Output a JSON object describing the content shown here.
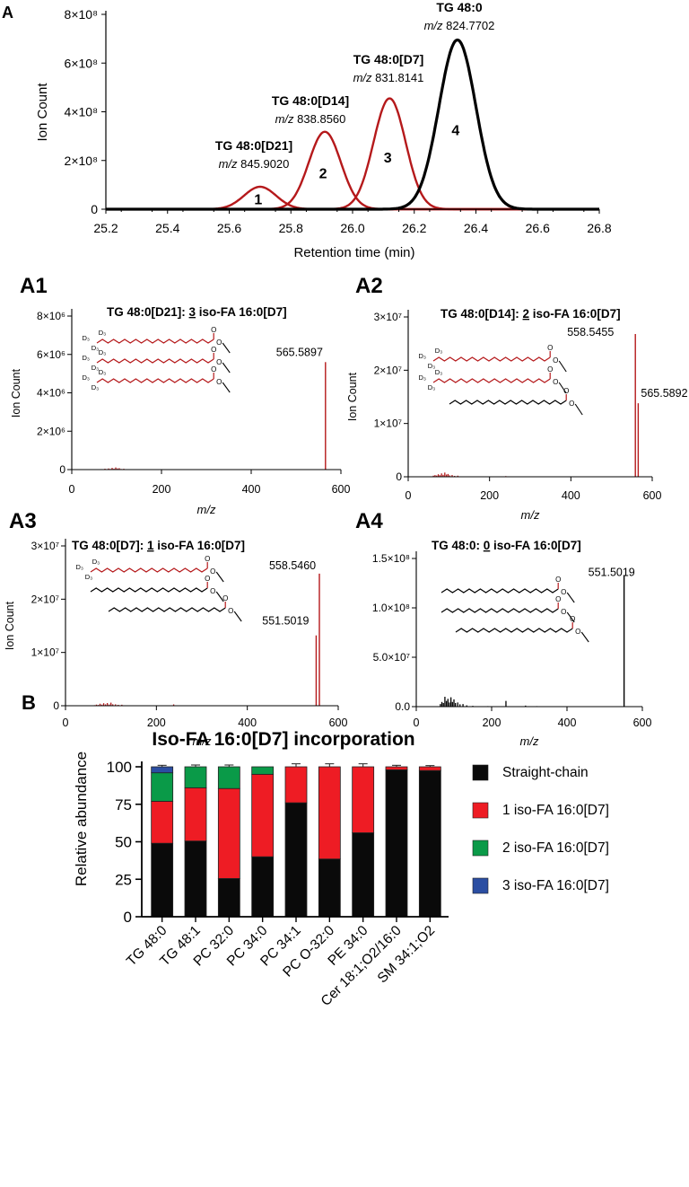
{
  "colors": {
    "red": "#b5191b",
    "black": "#000000",
    "bar_red": "#ee1c24",
    "bar_green": "#0a9a48",
    "bar_blue": "#2b4ea2",
    "bar_black": "#0a0a0a"
  },
  "panel_labels": {
    "A": "A",
    "A1": "A1",
    "A2": "A2",
    "A3": "A3",
    "A4": "A4",
    "B": "B"
  },
  "chart_data": [
    {
      "id": "A",
      "type": "line",
      "title": "",
      "xlabel": "Retention time (min)",
      "ylabel": "Ion Count",
      "xlim": [
        25.2,
        26.8
      ],
      "ylim": [
        0,
        800000000
      ],
      "xticks": [
        "25.2",
        "25.4",
        "25.6",
        "25.8",
        "26.0",
        "26.2",
        "26.4",
        "26.6",
        "26.8"
      ],
      "yticks": [
        "0",
        "2×10⁸",
        "4×10⁸",
        "6×10⁸",
        "8×10⁸"
      ],
      "series": [
        {
          "name": "1",
          "compound": "TG 48:0[D21]",
          "mz_label": "m/z",
          "mz_value": "845.9020",
          "color": "red",
          "center": 25.7,
          "peak": 92000000,
          "sigma": 0.052
        },
        {
          "name": "2",
          "compound": "TG 48:0[D14]",
          "mz_label": "m/z",
          "mz_value": "838.8560",
          "color": "red",
          "center": 25.91,
          "peak": 318000000,
          "sigma": 0.052
        },
        {
          "name": "3",
          "compound": "TG 48:0[D7]",
          "mz_label": "m/z",
          "mz_value": "831.8141",
          "color": "red",
          "center": 26.12,
          "peak": 455000000,
          "sigma": 0.052
        },
        {
          "name": "4",
          "compound": "TG 48:0",
          "mz_label": "m/z",
          "mz_value": "824.7702",
          "color": "black",
          "center": 26.34,
          "peak": 695000000,
          "sigma": 0.06
        }
      ]
    },
    {
      "id": "A1",
      "type": "bar",
      "title_prefix": "TG 48:0[D21]: ",
      "title_num": "3",
      "title_suffix": " iso-FA 16:0[D7]",
      "xlabel": "m/z",
      "ylabel": "Ion Count",
      "xlim": [
        0,
        600
      ],
      "ylim": [
        0,
        8000000
      ],
      "xticks": [
        "0",
        "200",
        "400",
        "600"
      ],
      "yticks": [
        "0",
        "2×10⁶",
        "4×10⁶",
        "6×10⁶",
        "8×10⁶"
      ],
      "color": "red",
      "peaks": [
        {
          "mz": 565.5897,
          "value": 5600000,
          "label": "565.5897"
        }
      ],
      "noise": [
        [
          62,
          0.5
        ],
        [
          66,
          0.9
        ],
        [
          70,
          0.6
        ],
        [
          74,
          1.6
        ],
        [
          78,
          0.9
        ],
        [
          82,
          2.1
        ],
        [
          86,
          1.2
        ],
        [
          90,
          3.2
        ],
        [
          94,
          1.6
        ],
        [
          98,
          4.0
        ],
        [
          102,
          2.2
        ],
        [
          106,
          2.6
        ],
        [
          110,
          1.1
        ],
        [
          116,
          1.5
        ],
        [
          124,
          0.7
        ],
        [
          134,
          0.5
        ],
        [
          150,
          0.3
        ],
        [
          186,
          0.3
        ],
        [
          242,
          0.4
        ],
        [
          300,
          0.2
        ]
      ],
      "structure": {
        "labels": [
          "D₃",
          "D₃",
          "D₃",
          "D₃",
          "D₃",
          "D₃",
          "D₃",
          "D₃",
          "D₃"
        ],
        "o": [
          "O",
          "O",
          "O",
          "O",
          "O",
          "O"
        ]
      }
    },
    {
      "id": "A2",
      "type": "bar",
      "title_prefix": "TG 48:0[D14]: ",
      "title_num": "2",
      "title_suffix": " iso-FA 16:0[D7]",
      "xlabel": "m/z",
      "ylabel": "Ion Count",
      "xlim": [
        0,
        600
      ],
      "ylim": [
        0,
        30000000
      ],
      "xticks": [
        "0",
        "200",
        "400",
        "600"
      ],
      "yticks": [
        "0",
        "1×10⁷",
        "2×10⁷",
        "3×10⁷"
      ],
      "color": "red",
      "peaks": [
        {
          "mz": 558.5455,
          "value": 26800000,
          "label": "558.5455"
        },
        {
          "mz": 565.5892,
          "value": 13800000,
          "label": "565.5892"
        }
      ],
      "noise": [
        [
          62,
          2.0
        ],
        [
          66,
          3.0
        ],
        [
          70,
          2.2
        ],
        [
          74,
          4.5
        ],
        [
          78,
          2.8
        ],
        [
          82,
          6.0
        ],
        [
          86,
          3.5
        ],
        [
          90,
          7.5
        ],
        [
          94,
          4.0
        ],
        [
          98,
          5.0
        ],
        [
          102,
          2.5
        ],
        [
          108,
          3.2
        ],
        [
          114,
          1.6
        ],
        [
          122,
          2.0
        ],
        [
          132,
          0.8
        ],
        [
          146,
          0.6
        ],
        [
          178,
          0.5
        ],
        [
          240,
          1.2
        ],
        [
          300,
          0.4
        ]
      ],
      "structure": {
        "labels": [
          "D₃",
          "D₃",
          "D₃",
          "D₃",
          "D₃",
          "D₃"
        ],
        "o": [
          "O",
          "O",
          "O",
          "O",
          "O",
          "O"
        ]
      }
    },
    {
      "id": "A3",
      "type": "bar",
      "title_prefix": "TG 48:0[D7]: ",
      "title_num": "1",
      "title_suffix": " iso-FA 16:0[D7]",
      "xlabel": "m/z",
      "ylabel": "Ion Count",
      "xlim": [
        0,
        600
      ],
      "ylim": [
        0,
        30000000
      ],
      "xticks": [
        "0",
        "200",
        "400",
        "600"
      ],
      "yticks": [
        "0",
        "1×10⁷",
        "2×10⁷",
        "3×10⁷"
      ],
      "color": "red",
      "peaks": [
        {
          "mz": 558.546,
          "value": 24800000,
          "label": "558.5460",
          "color": "red"
        },
        {
          "mz": 551.5019,
          "value": 13200000,
          "label": "551.5019",
          "color": "red"
        }
      ],
      "noise": [
        [
          64,
          1.0
        ],
        [
          68,
          2.0
        ],
        [
          72,
          1.4
        ],
        [
          76,
          3.6
        ],
        [
          80,
          2.0
        ],
        [
          84,
          4.5
        ],
        [
          88,
          2.5
        ],
        [
          92,
          4.8
        ],
        [
          96,
          2.2
        ],
        [
          100,
          5.5
        ],
        [
          104,
          2.6
        ],
        [
          110,
          2.5
        ],
        [
          116,
          1.6
        ],
        [
          124,
          1.8
        ],
        [
          134,
          0.8
        ],
        [
          150,
          0.5
        ],
        [
          190,
          0.4
        ],
        [
          238,
          2.4
        ],
        [
          290,
          0.4
        ],
        [
          320,
          0.3
        ]
      ],
      "structure": {
        "labels": [
          "D₃",
          "D₃",
          "D₃"
        ],
        "o": [
          "O",
          "O",
          "O",
          "O",
          "O",
          "O"
        ]
      }
    },
    {
      "id": "A4",
      "type": "bar",
      "title_prefix": "TG 48:0: ",
      "title_num": "0",
      "title_suffix": " iso-FA 16:0[D7]",
      "xlabel": "m/z",
      "ylabel": "",
      "xlim": [
        0,
        600
      ],
      "ylim": [
        0,
        150000000
      ],
      "xticks": [
        "0",
        "200",
        "400",
        "600"
      ],
      "yticks": [
        "0.0",
        "5.0×10⁷",
        "1.0×10⁸",
        "1.5×10⁸"
      ],
      "color": "black",
      "peaks": [
        {
          "mz": 551.5019,
          "value": 133000000,
          "label": "551.5019"
        }
      ],
      "noise": [
        [
          64,
          5.0
        ],
        [
          68,
          9.0
        ],
        [
          72,
          7.0
        ],
        [
          76,
          19.0
        ],
        [
          80,
          11.0
        ],
        [
          84,
          15.0
        ],
        [
          88,
          8.0
        ],
        [
          92,
          18.0
        ],
        [
          96,
          9.0
        ],
        [
          100,
          14.0
        ],
        [
          104,
          7.0
        ],
        [
          110,
          8.0
        ],
        [
          116,
          4.5
        ],
        [
          124,
          5.0
        ],
        [
          134,
          2.5
        ],
        [
          150,
          1.5
        ],
        [
          190,
          1.0
        ],
        [
          238,
          11.0
        ],
        [
          290,
          2.0
        ],
        [
          320,
          1.0
        ]
      ],
      "structure": {
        "labels": [],
        "o": [
          "O",
          "O",
          "O",
          "O",
          "O",
          "O"
        ]
      }
    },
    {
      "id": "B",
      "type": "bar",
      "stacked": true,
      "title": "Iso-FA 16:0[D7] incorporation",
      "xlabel": "",
      "ylabel": "Relative abundance",
      "ylim": [
        0,
        100
      ],
      "yticks": [
        "0",
        "25",
        "50",
        "75",
        "100"
      ],
      "categories": [
        "TG 48:0",
        "TG 48:1",
        "PC 32:0",
        "PC 34:0",
        "PC 34:1",
        "PC O-32:0",
        "PE 34:0",
        "Cer 18:1;O2/16:0",
        "SM 34:1;O2"
      ],
      "series": [
        {
          "name": "Straight-chain",
          "color": "bar_black",
          "values": [
            49,
            50.5,
            25.5,
            40,
            76,
            38.5,
            56,
            98,
            97.5
          ],
          "err": [
            2.5,
            2.5,
            2.5,
            2.0,
            2.0,
            2.0,
            2.0,
            0,
            0
          ]
        },
        {
          "name": "1 iso-FA 16:0[D7]",
          "color": "bar_red",
          "values": [
            28,
            35.5,
            60,
            55,
            24,
            61.5,
            44,
            2,
            2.5
          ],
          "err": [
            0.8,
            1.2,
            1.2,
            1.2,
            2.0,
            2.0,
            2.0,
            1.0,
            0.8
          ]
        },
        {
          "name": "2 iso-FA 16:0[D7]",
          "color": "bar_green",
          "values": [
            19,
            14,
            14.5,
            5,
            0,
            0,
            0,
            0,
            0
          ],
          "err": [
            0,
            1.2,
            1.2,
            0,
            0,
            0,
            0,
            0,
            0
          ]
        },
        {
          "name": "3 iso-FA 16:0[D7]",
          "color": "bar_blue",
          "values": [
            4,
            0,
            0,
            0,
            0,
            0,
            0,
            0,
            0
          ],
          "err": [
            1.0,
            0,
            0,
            0,
            0,
            0,
            0,
            0,
            0
          ]
        }
      ]
    }
  ]
}
